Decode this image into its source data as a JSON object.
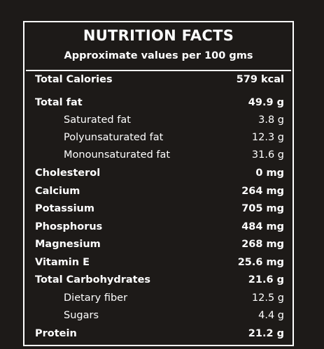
{
  "header": {
    "title": "NUTRITION FACTS",
    "subtitle": "Approximate values per 100 gms"
  },
  "rows": [
    {
      "label": "Total Calories",
      "value": "579 kcal"
    },
    {
      "label": "Total fat",
      "value": "49.9 g"
    },
    {
      "label": "Saturated fat",
      "value": "3.8 g"
    },
    {
      "label": "Polyunsaturated fat",
      "value": "12.3 g"
    },
    {
      "label": "Monounsaturated fat",
      "value": "31.6 g"
    },
    {
      "label": "Cholesterol",
      "value": "0 mg"
    },
    {
      "label": "Calcium",
      "value": "264 mg"
    },
    {
      "label": "Potassium",
      "value": "705 mg"
    },
    {
      "label": "Phosphorus",
      "value": "484 mg"
    },
    {
      "label": "Magnesium",
      "value": "268 mg"
    },
    {
      "label": "Vitamin E",
      "value": "25.6 mg"
    },
    {
      "label": "Total Carbohydrates",
      "value": "21.6 g"
    },
    {
      "label": "Dietary fiber",
      "value": "12.5 g"
    },
    {
      "label": "Sugars",
      "value": "4.4 g"
    },
    {
      "label": "Protein",
      "value": "21.2 g"
    }
  ],
  "colors": {
    "background": "#1d1a18",
    "text": "#ffffff",
    "border": "#ffffff"
  }
}
